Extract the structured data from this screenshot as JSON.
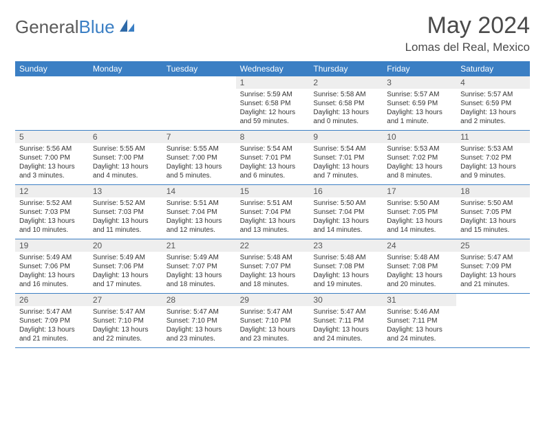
{
  "brand": {
    "part1": "General",
    "part2": "Blue"
  },
  "title": "May 2024",
  "location": "Lomas del Real, Mexico",
  "colors": {
    "header_bg": "#3b7fc4",
    "daynum_bg": "#eeeeee",
    "text": "#333333",
    "brand_gray": "#5a5a5a",
    "brand_blue": "#3b7fc4"
  },
  "dow": [
    "Sunday",
    "Monday",
    "Tuesday",
    "Wednesday",
    "Thursday",
    "Friday",
    "Saturday"
  ],
  "weeks": [
    [
      {
        "n": "",
        "sr": "",
        "ss": "",
        "dl": ""
      },
      {
        "n": "",
        "sr": "",
        "ss": "",
        "dl": ""
      },
      {
        "n": "",
        "sr": "",
        "ss": "",
        "dl": ""
      },
      {
        "n": "1",
        "sr": "Sunrise: 5:59 AM",
        "ss": "Sunset: 6:58 PM",
        "dl": "Daylight: 12 hours and 59 minutes."
      },
      {
        "n": "2",
        "sr": "Sunrise: 5:58 AM",
        "ss": "Sunset: 6:58 PM",
        "dl": "Daylight: 13 hours and 0 minutes."
      },
      {
        "n": "3",
        "sr": "Sunrise: 5:57 AM",
        "ss": "Sunset: 6:59 PM",
        "dl": "Daylight: 13 hours and 1 minute."
      },
      {
        "n": "4",
        "sr": "Sunrise: 5:57 AM",
        "ss": "Sunset: 6:59 PM",
        "dl": "Daylight: 13 hours and 2 minutes."
      }
    ],
    [
      {
        "n": "5",
        "sr": "Sunrise: 5:56 AM",
        "ss": "Sunset: 7:00 PM",
        "dl": "Daylight: 13 hours and 3 minutes."
      },
      {
        "n": "6",
        "sr": "Sunrise: 5:55 AM",
        "ss": "Sunset: 7:00 PM",
        "dl": "Daylight: 13 hours and 4 minutes."
      },
      {
        "n": "7",
        "sr": "Sunrise: 5:55 AM",
        "ss": "Sunset: 7:00 PM",
        "dl": "Daylight: 13 hours and 5 minutes."
      },
      {
        "n": "8",
        "sr": "Sunrise: 5:54 AM",
        "ss": "Sunset: 7:01 PM",
        "dl": "Daylight: 13 hours and 6 minutes."
      },
      {
        "n": "9",
        "sr": "Sunrise: 5:54 AM",
        "ss": "Sunset: 7:01 PM",
        "dl": "Daylight: 13 hours and 7 minutes."
      },
      {
        "n": "10",
        "sr": "Sunrise: 5:53 AM",
        "ss": "Sunset: 7:02 PM",
        "dl": "Daylight: 13 hours and 8 minutes."
      },
      {
        "n": "11",
        "sr": "Sunrise: 5:53 AM",
        "ss": "Sunset: 7:02 PM",
        "dl": "Daylight: 13 hours and 9 minutes."
      }
    ],
    [
      {
        "n": "12",
        "sr": "Sunrise: 5:52 AM",
        "ss": "Sunset: 7:03 PM",
        "dl": "Daylight: 13 hours and 10 minutes."
      },
      {
        "n": "13",
        "sr": "Sunrise: 5:52 AM",
        "ss": "Sunset: 7:03 PM",
        "dl": "Daylight: 13 hours and 11 minutes."
      },
      {
        "n": "14",
        "sr": "Sunrise: 5:51 AM",
        "ss": "Sunset: 7:04 PM",
        "dl": "Daylight: 13 hours and 12 minutes."
      },
      {
        "n": "15",
        "sr": "Sunrise: 5:51 AM",
        "ss": "Sunset: 7:04 PM",
        "dl": "Daylight: 13 hours and 13 minutes."
      },
      {
        "n": "16",
        "sr": "Sunrise: 5:50 AM",
        "ss": "Sunset: 7:04 PM",
        "dl": "Daylight: 13 hours and 14 minutes."
      },
      {
        "n": "17",
        "sr": "Sunrise: 5:50 AM",
        "ss": "Sunset: 7:05 PM",
        "dl": "Daylight: 13 hours and 14 minutes."
      },
      {
        "n": "18",
        "sr": "Sunrise: 5:50 AM",
        "ss": "Sunset: 7:05 PM",
        "dl": "Daylight: 13 hours and 15 minutes."
      }
    ],
    [
      {
        "n": "19",
        "sr": "Sunrise: 5:49 AM",
        "ss": "Sunset: 7:06 PM",
        "dl": "Daylight: 13 hours and 16 minutes."
      },
      {
        "n": "20",
        "sr": "Sunrise: 5:49 AM",
        "ss": "Sunset: 7:06 PM",
        "dl": "Daylight: 13 hours and 17 minutes."
      },
      {
        "n": "21",
        "sr": "Sunrise: 5:49 AM",
        "ss": "Sunset: 7:07 PM",
        "dl": "Daylight: 13 hours and 18 minutes."
      },
      {
        "n": "22",
        "sr": "Sunrise: 5:48 AM",
        "ss": "Sunset: 7:07 PM",
        "dl": "Daylight: 13 hours and 18 minutes."
      },
      {
        "n": "23",
        "sr": "Sunrise: 5:48 AM",
        "ss": "Sunset: 7:08 PM",
        "dl": "Daylight: 13 hours and 19 minutes."
      },
      {
        "n": "24",
        "sr": "Sunrise: 5:48 AM",
        "ss": "Sunset: 7:08 PM",
        "dl": "Daylight: 13 hours and 20 minutes."
      },
      {
        "n": "25",
        "sr": "Sunrise: 5:47 AM",
        "ss": "Sunset: 7:09 PM",
        "dl": "Daylight: 13 hours and 21 minutes."
      }
    ],
    [
      {
        "n": "26",
        "sr": "Sunrise: 5:47 AM",
        "ss": "Sunset: 7:09 PM",
        "dl": "Daylight: 13 hours and 21 minutes."
      },
      {
        "n": "27",
        "sr": "Sunrise: 5:47 AM",
        "ss": "Sunset: 7:10 PM",
        "dl": "Daylight: 13 hours and 22 minutes."
      },
      {
        "n": "28",
        "sr": "Sunrise: 5:47 AM",
        "ss": "Sunset: 7:10 PM",
        "dl": "Daylight: 13 hours and 23 minutes."
      },
      {
        "n": "29",
        "sr": "Sunrise: 5:47 AM",
        "ss": "Sunset: 7:10 PM",
        "dl": "Daylight: 13 hours and 23 minutes."
      },
      {
        "n": "30",
        "sr": "Sunrise: 5:47 AM",
        "ss": "Sunset: 7:11 PM",
        "dl": "Daylight: 13 hours and 24 minutes."
      },
      {
        "n": "31",
        "sr": "Sunrise: 5:46 AM",
        "ss": "Sunset: 7:11 PM",
        "dl": "Daylight: 13 hours and 24 minutes."
      },
      {
        "n": "",
        "sr": "",
        "ss": "",
        "dl": ""
      }
    ]
  ]
}
